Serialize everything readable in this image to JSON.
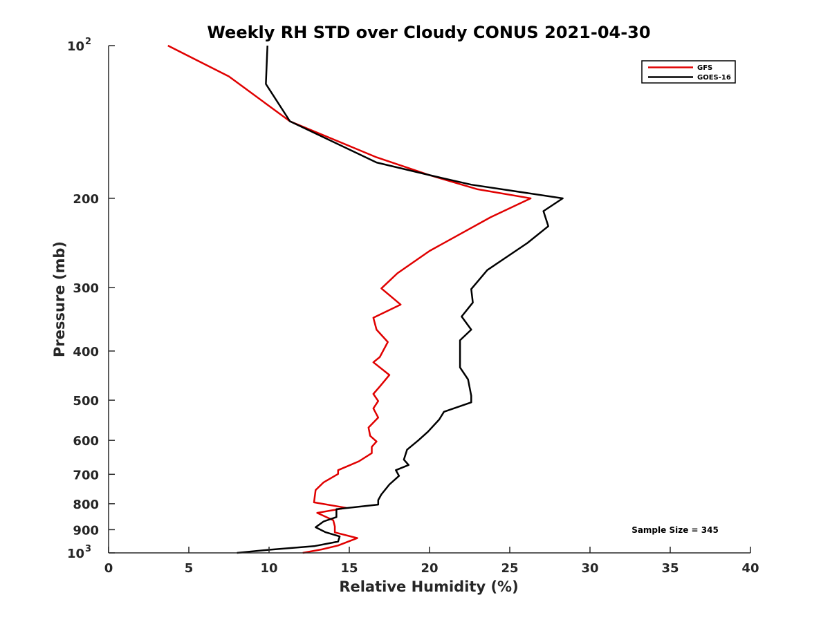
{
  "chart_data": {
    "type": "line",
    "title": "Weekly RH STD over Cloudy CONUS 2021-04-30",
    "xlabel": "Relative Humidity (%)",
    "ylabel": "Pressure (mb)",
    "xlim": [
      0,
      40
    ],
    "ylim": [
      100,
      1000
    ],
    "yscale": "log",
    "y_reversed": true,
    "xticks": [
      0,
      5,
      10,
      15,
      20,
      25,
      30,
      35,
      40
    ],
    "yticks": [
      {
        "value": 100,
        "label": "10",
        "sup": "2"
      },
      {
        "value": 200,
        "label": "200"
      },
      {
        "value": 300,
        "label": "300"
      },
      {
        "value": 400,
        "label": "400"
      },
      {
        "value": 500,
        "label": "500"
      },
      {
        "value": 600,
        "label": "600"
      },
      {
        "value": 700,
        "label": "700"
      },
      {
        "value": 800,
        "label": "800"
      },
      {
        "value": 900,
        "label": "900"
      },
      {
        "value": 1000,
        "label": "10",
        "sup": "3"
      }
    ],
    "legend_position": "top-right",
    "annotation": "Sample Size = 345",
    "series": [
      {
        "name": "GFS",
        "color": "#e00000",
        "points": [
          [
            3.7,
            100
          ],
          [
            7.5,
            115
          ],
          [
            11.3,
            141
          ],
          [
            16.7,
            166
          ],
          [
            20,
            180
          ],
          [
            23,
            192
          ],
          [
            26.3,
            200
          ],
          [
            23.8,
            218
          ],
          [
            20,
            254
          ],
          [
            18,
            281
          ],
          [
            17,
            301
          ],
          [
            18.2,
            324
          ],
          [
            16.5,
            344
          ],
          [
            16.7,
            363
          ],
          [
            17.4,
            384
          ],
          [
            16.9,
            411
          ],
          [
            16.5,
            421
          ],
          [
            17.5,
            446
          ],
          [
            16.9,
            470
          ],
          [
            16.5,
            486
          ],
          [
            16.8,
            502
          ],
          [
            16.5,
            519
          ],
          [
            16.8,
            541
          ],
          [
            16.2,
            566
          ],
          [
            16.3,
            588
          ],
          [
            16.7,
            603
          ],
          [
            16.4,
            618
          ],
          [
            16.4,
            636
          ],
          [
            15.6,
            660
          ],
          [
            14.3,
            687
          ],
          [
            14.3,
            699
          ],
          [
            13.4,
            726
          ],
          [
            12.9,
            752
          ],
          [
            12.8,
            795
          ],
          [
            14.8,
            815
          ],
          [
            13.0,
            834
          ],
          [
            14.0,
            862
          ],
          [
            14.1,
            887
          ],
          [
            14.1,
            911
          ],
          [
            15.5,
            935
          ],
          [
            14.3,
            967
          ],
          [
            13.3,
            984
          ],
          [
            12.1,
            1000
          ]
        ]
      },
      {
        "name": "GOES-16",
        "color": "#000000",
        "points": [
          [
            9.9,
            100
          ],
          [
            9.8,
            119
          ],
          [
            11.3,
            141
          ],
          [
            16.7,
            170
          ],
          [
            20,
            180
          ],
          [
            22.6,
            188
          ],
          [
            28.3,
            200
          ],
          [
            27.1,
            212
          ],
          [
            27.4,
            227
          ],
          [
            26.1,
            245
          ],
          [
            23.6,
            277
          ],
          [
            22.6,
            302
          ],
          [
            22.7,
            321
          ],
          [
            22,
            342
          ],
          [
            22.6,
            363
          ],
          [
            21.9,
            381
          ],
          [
            21.9,
            431
          ],
          [
            22.4,
            455
          ],
          [
            22.6,
            490
          ],
          [
            22.6,
            505
          ],
          [
            20.9,
            527
          ],
          [
            20.6,
            546
          ],
          [
            19.9,
            577
          ],
          [
            19.3,
            600
          ],
          [
            18.6,
            626
          ],
          [
            18.4,
            655
          ],
          [
            18.7,
            671
          ],
          [
            17.9,
            687
          ],
          [
            18.1,
            705
          ],
          [
            17.5,
            733
          ],
          [
            17.0,
            767
          ],
          [
            16.8,
            787
          ],
          [
            16.8,
            803
          ],
          [
            14.2,
            820
          ],
          [
            14.2,
            850
          ],
          [
            13.4,
            867
          ],
          [
            12.9,
            890
          ],
          [
            13.5,
            910
          ],
          [
            14.4,
            928
          ],
          [
            14.3,
            950
          ],
          [
            12.8,
            970
          ],
          [
            10.0,
            986
          ],
          [
            8.0,
            1000
          ]
        ]
      }
    ]
  }
}
